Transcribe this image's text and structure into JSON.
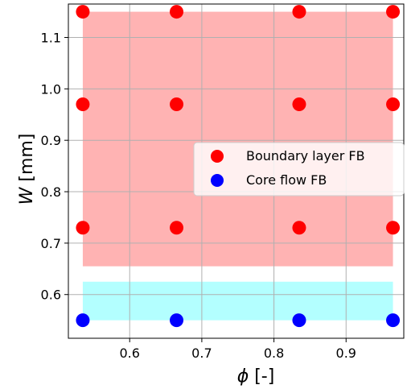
{
  "chart_data": {
    "type": "scatter",
    "xlabel_symbol": "ϕ",
    "xlabel_unit": " [-]",
    "ylabel_symbol": "W",
    "ylabel_unit": " [mm]",
    "xlim": [
      0.515,
      0.98
    ],
    "ylim": [
      0.515,
      1.165
    ],
    "xticks": [
      0.6,
      0.7,
      0.8,
      0.9
    ],
    "xtick_labels": [
      "0.6",
      "0.7",
      "0.8",
      "0.9"
    ],
    "yticks": [
      0.6,
      0.7,
      0.8,
      0.9,
      1.0,
      1.1
    ],
    "ytick_labels": [
      "0.6",
      "0.7",
      "0.8",
      "0.9",
      "1.0",
      "1.1"
    ],
    "grid": true,
    "legend_position": "center-right",
    "regions": [
      {
        "x": [
          0.535,
          0.965
        ],
        "y": [
          0.655,
          1.15
        ],
        "color": "#ffb3b3"
      },
      {
        "x": [
          0.535,
          0.965
        ],
        "y": [
          0.55,
          0.625
        ],
        "color": "#b3ffff"
      }
    ],
    "series": [
      {
        "name": "Boundary layer FB",
        "color": "#ff0000",
        "points": [
          [
            0.535,
            1.15
          ],
          [
            0.665,
            1.15
          ],
          [
            0.835,
            1.15
          ],
          [
            0.965,
            1.15
          ],
          [
            0.535,
            0.97
          ],
          [
            0.665,
            0.97
          ],
          [
            0.835,
            0.97
          ],
          [
            0.965,
            0.97
          ],
          [
            0.535,
            0.73
          ],
          [
            0.665,
            0.73
          ],
          [
            0.835,
            0.73
          ],
          [
            0.965,
            0.73
          ]
        ]
      },
      {
        "name": "Core flow FB",
        "color": "#0000ff",
        "points": [
          [
            0.535,
            0.55
          ],
          [
            0.665,
            0.55
          ],
          [
            0.835,
            0.55
          ],
          [
            0.965,
            0.55
          ]
        ]
      }
    ]
  }
}
